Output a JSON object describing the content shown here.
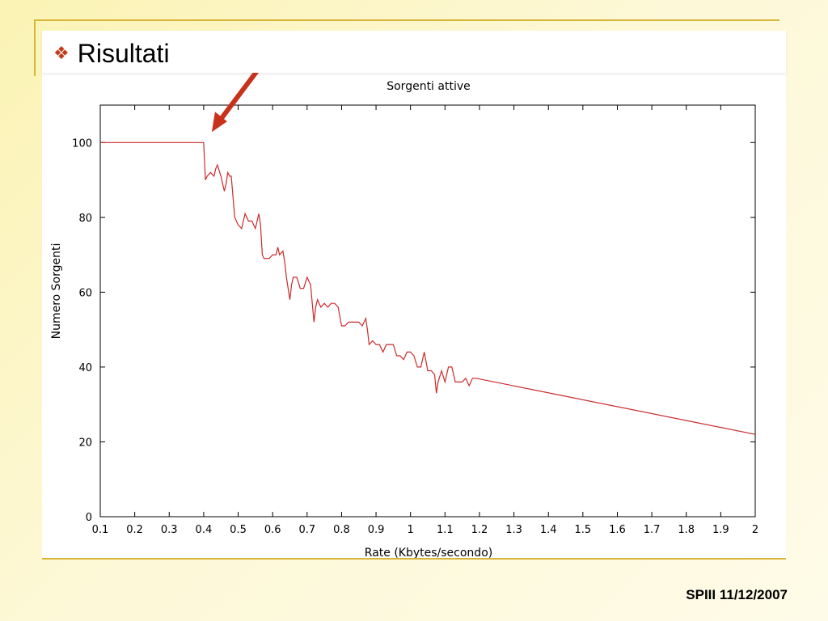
{
  "slide": {
    "title": "Risultati",
    "bullet_icon": "diamond-bullet-icon",
    "footer": "SPIII 11/12/2007",
    "accent_color": "#c23a1a",
    "frame_color": "#d7b53a"
  },
  "annotation": {
    "type": "arrow",
    "color": "#c8321a",
    "points_to": {
      "x": 0.4,
      "y": 100
    }
  },
  "chart_data": {
    "type": "line",
    "title": "Sorgenti attive",
    "xlabel": "Rate (Kbytes/secondo)",
    "ylabel": "Numero Sorgenti",
    "xlim": [
      0.1,
      2
    ],
    "ylim": [
      0,
      110
    ],
    "xticks": [
      0.1,
      0.2,
      0.3,
      0.4,
      0.5,
      0.6,
      0.7,
      0.8,
      0.9,
      1,
      1.1,
      1.2,
      1.3,
      1.4,
      1.5,
      1.6,
      1.7,
      1.8,
      1.9,
      2
    ],
    "xtick_labels": [
      "0.1",
      "0.2",
      "0.3",
      "0.4",
      "0.5",
      "0.6",
      "0.7",
      "0.8",
      "0.9",
      "1",
      "1.1",
      "1.2",
      "1.3",
      "1.4",
      "1.5",
      "1.6",
      "1.7",
      "1.8",
      "1.9",
      "2"
    ],
    "yticks": [
      0,
      20,
      40,
      60,
      80,
      100
    ],
    "ytick_labels": [
      "0",
      "20",
      "40",
      "60",
      "80",
      "100"
    ],
    "grid": false,
    "series": [
      {
        "color": "#cc2a2a",
        "x": [
          0.1,
          0.4,
          0.405,
          0.41,
          0.42,
          0.43,
          0.435,
          0.44,
          0.45,
          0.455,
          0.46,
          0.465,
          0.47,
          0.475,
          0.48,
          0.49,
          0.5,
          0.51,
          0.52,
          0.525,
          0.53,
          0.54,
          0.55,
          0.555,
          0.56,
          0.565,
          0.57,
          0.575,
          0.58,
          0.59,
          0.6,
          0.61,
          0.615,
          0.62,
          0.63,
          0.635,
          0.64,
          0.65,
          0.655,
          0.66,
          0.67,
          0.68,
          0.69,
          0.7,
          0.71,
          0.72,
          0.725,
          0.73,
          0.74,
          0.75,
          0.76,
          0.77,
          0.78,
          0.79,
          0.8,
          0.81,
          0.82,
          0.83,
          0.84,
          0.85,
          0.86,
          0.87,
          0.875,
          0.88,
          0.89,
          0.9,
          0.91,
          0.92,
          0.93,
          0.94,
          0.95,
          0.96,
          0.97,
          0.98,
          0.99,
          1.0,
          1.01,
          1.02,
          1.03,
          1.04,
          1.05,
          1.06,
          1.07,
          1.075,
          1.08,
          1.09,
          1.1,
          1.11,
          1.12,
          1.13,
          1.14,
          1.15,
          1.16,
          1.17,
          1.18,
          1.19,
          2.0
        ],
        "y": [
          100,
          100,
          90,
          91,
          92,
          91,
          93,
          94,
          91,
          89,
          87,
          89,
          92,
          91,
          91,
          80,
          78,
          77,
          81,
          80,
          79,
          79,
          77,
          79,
          81,
          78,
          70,
          69,
          69,
          69,
          70,
          70,
          72,
          70,
          71,
          68,
          64,
          58,
          62,
          64,
          64,
          61,
          61,
          64,
          62,
          52,
          56,
          58,
          56,
          57,
          56,
          57,
          57,
          56,
          51,
          51,
          52,
          52,
          52,
          52,
          51,
          53,
          50,
          46,
          47,
          46,
          46,
          44,
          46,
          46,
          46,
          43,
          43,
          42,
          44,
          44,
          43,
          40,
          40,
          44,
          39,
          39,
          38,
          33,
          36,
          39,
          36,
          40,
          40,
          36,
          36,
          36,
          37,
          35,
          37,
          37,
          22
        ]
      }
    ]
  }
}
